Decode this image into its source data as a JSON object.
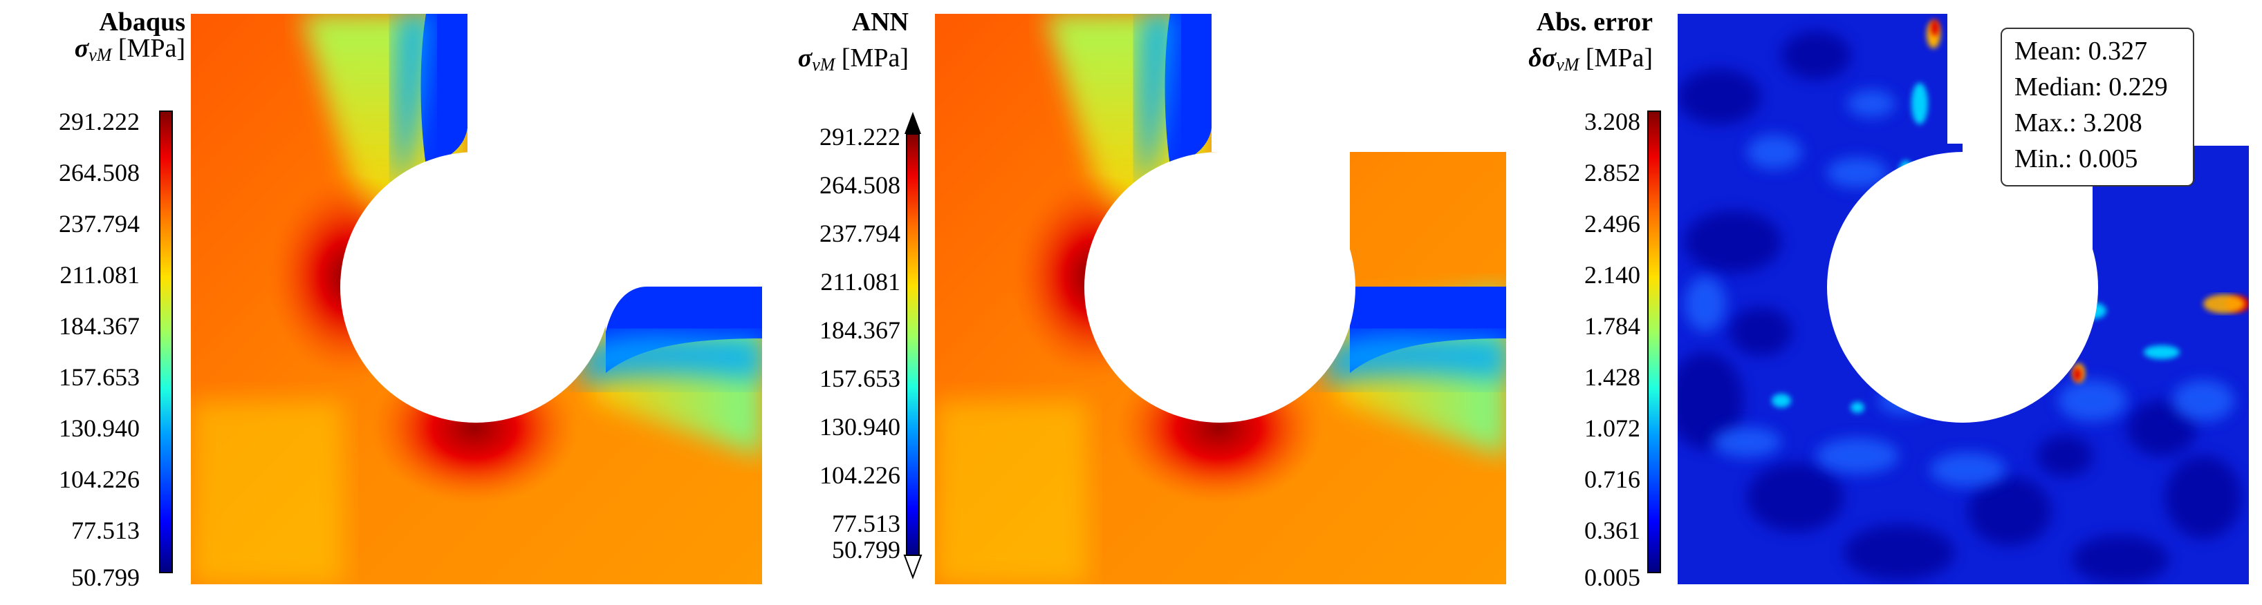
{
  "panels": [
    {
      "title": "Abaqus",
      "symbol": "σ",
      "subscript": "vM",
      "unit": "[MPa]",
      "ticks": [
        "291.222",
        "264.508",
        "237.794",
        "211.081",
        "184.367",
        "157.653",
        "130.940",
        "104.226",
        "77.513",
        "50.799"
      ],
      "colormap": "jet",
      "extend_arrows": false
    },
    {
      "title": "ANN",
      "symbol": "σ",
      "subscript": "vM",
      "unit": "[MPa]",
      "ticks": [
        "291.222",
        "264.508",
        "237.794",
        "211.081",
        "184.367",
        "157.653",
        "130.940",
        "104.226",
        "77.513",
        "50.799"
      ],
      "colormap": "jet",
      "extend_arrows": true
    },
    {
      "title": "Abs. error",
      "symbol": "δσ",
      "subscript": "vM",
      "unit": "[MPa]",
      "ticks": [
        "3.208",
        "2.852",
        "2.496",
        "2.140",
        "1.784",
        "1.428",
        "1.072",
        "0.716",
        "0.361",
        "0.005"
      ],
      "colormap": "jet",
      "extend_arrows": false
    }
  ],
  "stats": {
    "mean": "Mean: 0.327",
    "median": "Median: 0.229",
    "max": "Max.: 3.208",
    "min": "Min.: 0.005"
  },
  "colors": {
    "jet_stops": [
      "#00007f",
      "#0000ff",
      "#00a0ff",
      "#20ffdf",
      "#9fff60",
      "#ffe000",
      "#ff7000",
      "#ee0000",
      "#7f0000"
    ],
    "error_background": "#0b1ed8"
  }
}
